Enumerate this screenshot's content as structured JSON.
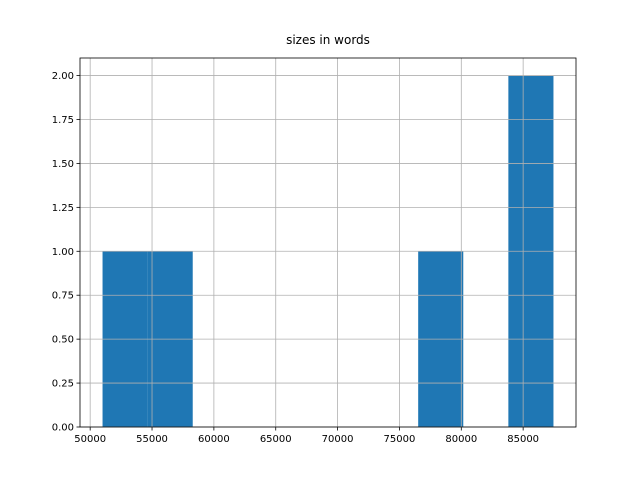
{
  "chart_data": {
    "type": "histogram",
    "title": "sizes in words",
    "bins": [
      51000,
      54645,
      58290,
      61935,
      65580,
      69225,
      72870,
      76515,
      80160,
      83805,
      87450
    ],
    "values": [
      1,
      1,
      0,
      0,
      0,
      0,
      0,
      1,
      0,
      2
    ],
    "color": "#1f77b4",
    "xlim": [
      49177.5,
      89272.5
    ],
    "xticks": [
      50000,
      55000,
      60000,
      65000,
      70000,
      75000,
      80000,
      85000
    ],
    "ylim": [
      0,
      2.1
    ],
    "yticks": [
      {
        "value": 0,
        "label": "0.00"
      },
      {
        "value": 0.25,
        "label": "0.25"
      },
      {
        "value": 0.5,
        "label": "0.50"
      },
      {
        "value": 0.75,
        "label": "0.75"
      },
      {
        "value": 1,
        "label": "1.00"
      },
      {
        "value": 1.25,
        "label": "1.25"
      },
      {
        "value": 1.5,
        "label": "1.50"
      },
      {
        "value": 1.75,
        "label": "1.75"
      },
      {
        "value": 2,
        "label": "2.00"
      }
    ],
    "grid": true
  }
}
